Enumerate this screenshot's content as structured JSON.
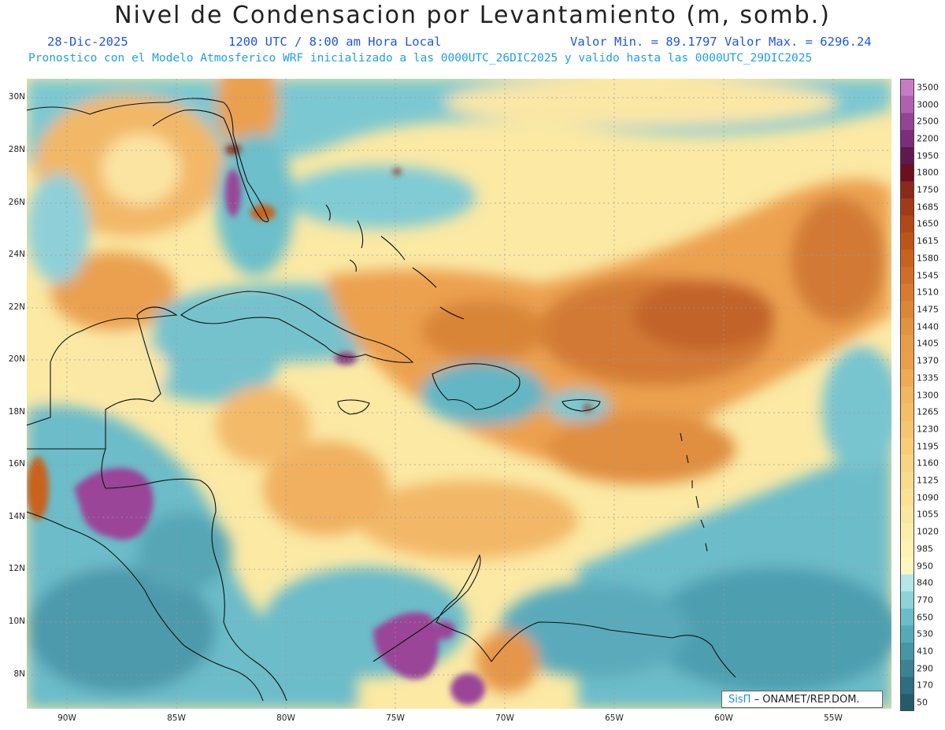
{
  "header": {
    "title": "Nivel de Condensacion por Levantamiento (m, somb.)",
    "date": "28-Dic-2025",
    "time": "1200 UTC / 8:00 am Hora Local",
    "minmax": "Valor Min. = 89.1797  Valor Max. = 6296.24",
    "model_line": "Pronostico con el Modelo Atmosferico WRF inicializado a las 0000UTC_26DIC2025 y valido hasta las  0000UTC_29DIC2025"
  },
  "map": {
    "lat_labels": [
      "30N",
      "28N",
      "26N",
      "24N",
      "22N",
      "20N",
      "18N",
      "16N",
      "14N",
      "12N",
      "10N",
      "8N"
    ],
    "lon_labels": [
      "90W",
      "85W",
      "80W",
      "75W",
      "70W",
      "65W",
      "60W",
      "55W"
    ]
  },
  "legend": {
    "levels": [
      "3500",
      "3000",
      "2500",
      "2200",
      "1950",
      "1800",
      "1750",
      "1685",
      "1650",
      "1615",
      "1580",
      "1545",
      "1510",
      "1475",
      "1440",
      "1405",
      "1370",
      "1335",
      "1300",
      "1265",
      "1230",
      "1195",
      "1160",
      "1125",
      "1090",
      "1055",
      "1020",
      "985",
      "950",
      "840",
      "770",
      "650",
      "530",
      "410",
      "290",
      "170",
      "50"
    ],
    "colors": [
      "#c77bc4",
      "#b060b0",
      "#944494",
      "#7a2e7a",
      "#5e1a4e",
      "#6a1020",
      "#8a2a18",
      "#a03a18",
      "#b04818",
      "#bd5518",
      "#c8621f",
      "#d06e28",
      "#d87a30",
      "#de8638",
      "#e39240",
      "#e89e48",
      "#ec9f4a",
      "#efaa55",
      "#f2b560",
      "#f4bd66",
      "#f6c570",
      "#f8cd78",
      "#f9d482",
      "#fadb8c",
      "#fbe196",
      "#fce7a0",
      "#fdedaa",
      "#fef2b4",
      "#fef7bf",
      "#b4e6ea",
      "#8ed2da",
      "#6cbcc9",
      "#56aab8",
      "#4696a6",
      "#3a8294",
      "#2e6e80",
      "#245c6c"
    ],
    "credit_brand": "SisΠ",
    "credit_text": "– ONAMET/REP.DOM."
  }
}
